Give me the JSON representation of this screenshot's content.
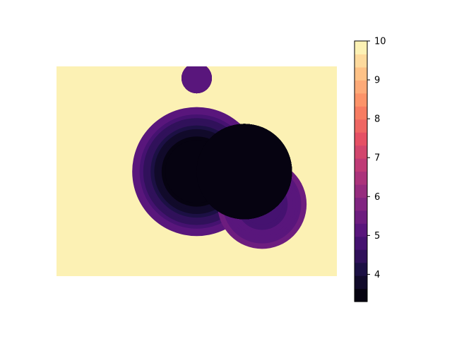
{
  "chart_data": {
    "type": "heatmap",
    "title": "",
    "xlabel": "",
    "ylabel": "",
    "axes_visible": false,
    "colormap": "magma",
    "colorbar": {
      "placement": "right",
      "range": [
        3.3,
        10
      ],
      "levels": 20,
      "ticks": [
        4,
        5,
        6,
        7,
        8,
        9,
        10
      ],
      "tick_labels": [
        "4",
        "5",
        "6",
        "7",
        "8",
        "9",
        "10"
      ]
    },
    "background_value": 10,
    "extent": {
      "x": [
        0,
        100
      ],
      "y": [
        0,
        75
      ]
    },
    "blobs": [
      {
        "name": "small-top",
        "cx": 50.0,
        "cy": 70.8,
        "r_outer": 5.4,
        "v_outer": 5.5,
        "r_inner": 5.4,
        "v_inner": 5.2
      },
      {
        "name": "large-left",
        "cx": 50.0,
        "cy": 37.4,
        "r_outer": 23.0,
        "v_outer": 5.2,
        "r_inner": 11.2,
        "v_inner": 3.3
      },
      {
        "name": "lower-right",
        "cx": 73.3,
        "cy": 25.7,
        "r_outer": 15.9,
        "v_outer": 5.4,
        "r_inner": 7.2,
        "v_inner": 4.8
      },
      {
        "name": "core-right",
        "cx": 67.0,
        "cy": 37.4,
        "r_outer": 17.0,
        "v_outer": 3.3,
        "r_inner": 17.0,
        "v_inner": 3.3
      }
    ]
  }
}
